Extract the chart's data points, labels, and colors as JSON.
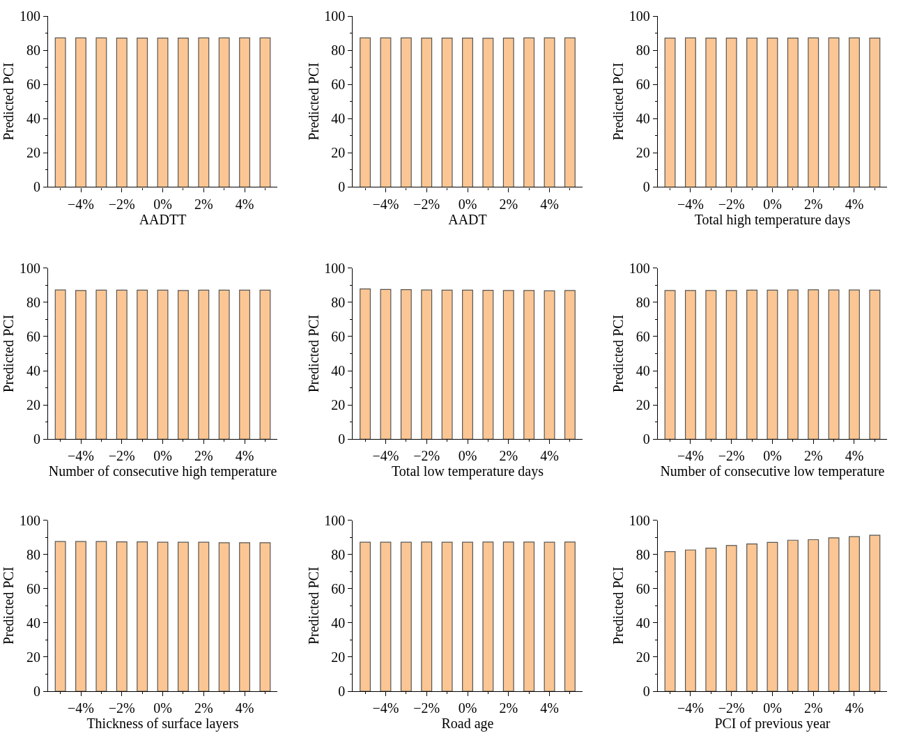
{
  "chart_data": [
    {
      "type": "bar",
      "categories": [
        null,
        "−4%",
        null,
        "−2%",
        null,
        "0%",
        null,
        "2%",
        null,
        "4%",
        null
      ],
      "values": [
        87.2,
        87.2,
        87.2,
        87.1,
        87.1,
        87.1,
        87.1,
        87.2,
        87.2,
        87.2,
        87.2
      ],
      "color": "#fbc693",
      "xlabel": "AADTT",
      "ylabel": "Predicted PCI",
      "ylim": [
        0,
        100
      ],
      "yticks": [
        0,
        20,
        40,
        60,
        80,
        100
      ]
    },
    {
      "type": "bar",
      "categories": [
        null,
        "−4%",
        null,
        "−2%",
        null,
        "0%",
        null,
        "2%",
        null,
        "4%",
        null
      ],
      "values": [
        87.2,
        87.2,
        87.2,
        87.1,
        87.1,
        87.1,
        87.0,
        87.1,
        87.2,
        87.2,
        87.2
      ],
      "color": "#fbc693",
      "xlabel": "AADT",
      "ylabel": "Predicted PCI",
      "ylim": [
        0,
        100
      ],
      "yticks": [
        0,
        20,
        40,
        60,
        80,
        100
      ]
    },
    {
      "type": "bar",
      "categories": [
        null,
        "−4%",
        null,
        "−2%",
        null,
        "0%",
        null,
        "2%",
        null,
        "4%",
        null
      ],
      "values": [
        87.1,
        87.2,
        87.1,
        87.1,
        87.1,
        87.1,
        87.1,
        87.2,
        87.2,
        87.2,
        87.1
      ],
      "color": "#fbc693",
      "xlabel": "Total high temperature days",
      "ylabel": "Predicted PCI",
      "ylim": [
        0,
        100
      ],
      "yticks": [
        0,
        20,
        40,
        60,
        80,
        100
      ]
    },
    {
      "type": "bar",
      "categories": [
        null,
        "−4%",
        null,
        "−2%",
        null,
        "0%",
        null,
        "2%",
        null,
        "4%",
        null
      ],
      "values": [
        87.2,
        86.9,
        87.1,
        87.1,
        87.1,
        87.1,
        86.9,
        87.1,
        87.1,
        87.1,
        87.1
      ],
      "color": "#fbc693",
      "xlabel": "Number of consecutive high temperature",
      "ylabel": "Predicted PCI",
      "ylim": [
        0,
        100
      ],
      "yticks": [
        0,
        20,
        40,
        60,
        80,
        100
      ]
    },
    {
      "type": "bar",
      "categories": [
        null,
        "−4%",
        null,
        "−2%",
        null,
        "0%",
        null,
        "2%",
        null,
        "4%",
        null
      ],
      "values": [
        87.8,
        87.5,
        87.4,
        87.2,
        87.1,
        87.1,
        87.0,
        86.9,
        86.9,
        86.7,
        86.9
      ],
      "color": "#fbc693",
      "xlabel": "Total low temperature days",
      "ylabel": "Predicted PCI",
      "ylim": [
        0,
        100
      ],
      "yticks": [
        0,
        20,
        40,
        60,
        80,
        100
      ]
    },
    {
      "type": "bar",
      "categories": [
        null,
        "−4%",
        null,
        "−2%",
        null,
        "0%",
        null,
        "2%",
        null,
        "4%",
        null
      ],
      "values": [
        86.9,
        86.9,
        86.9,
        86.9,
        87.1,
        87.1,
        87.2,
        87.3,
        87.2,
        87.2,
        87.1
      ],
      "color": "#fbc693",
      "xlabel": "Number of consecutive low temperature",
      "ylabel": "Predicted PCI",
      "ylim": [
        0,
        100
      ],
      "yticks": [
        0,
        20,
        40,
        60,
        80,
        100
      ]
    },
    {
      "type": "bar",
      "categories": [
        null,
        "−4%",
        null,
        "−2%",
        null,
        "0%",
        null,
        "2%",
        null,
        "4%",
        null
      ],
      "values": [
        87.5,
        87.5,
        87.5,
        87.3,
        87.3,
        87.1,
        87.1,
        87.1,
        86.8,
        86.8,
        86.8
      ],
      "color": "#fbc693",
      "xlabel": "Thickness of surface layers",
      "ylabel": "Predicted PCI",
      "ylim": [
        0,
        100
      ],
      "yticks": [
        0,
        20,
        40,
        60,
        80,
        100
      ]
    },
    {
      "type": "bar",
      "categories": [
        null,
        "−4%",
        null,
        "−2%",
        null,
        "0%",
        null,
        "2%",
        null,
        "4%",
        null
      ],
      "values": [
        87.1,
        87.1,
        87.1,
        87.2,
        87.1,
        87.1,
        87.2,
        87.2,
        87.2,
        87.1,
        87.2
      ],
      "color": "#fbc693",
      "xlabel": "Road age",
      "ylabel": "Predicted PCI",
      "ylim": [
        0,
        100
      ],
      "yticks": [
        0,
        20,
        40,
        60,
        80,
        100
      ]
    },
    {
      "type": "bar",
      "categories": [
        null,
        "−4%",
        null,
        "−2%",
        null,
        "0%",
        null,
        "2%",
        null,
        "4%",
        null
      ],
      "values": [
        81.6,
        82.6,
        83.7,
        85.2,
        86.1,
        87.0,
        88.3,
        88.6,
        89.7,
        90.4,
        91.2
      ],
      "color": "#fbc693",
      "xlabel": "PCI of previous year",
      "ylabel": "Predicted PCI",
      "ylim": [
        0,
        100
      ],
      "yticks": [
        0,
        20,
        40,
        60,
        80,
        100
      ]
    }
  ]
}
